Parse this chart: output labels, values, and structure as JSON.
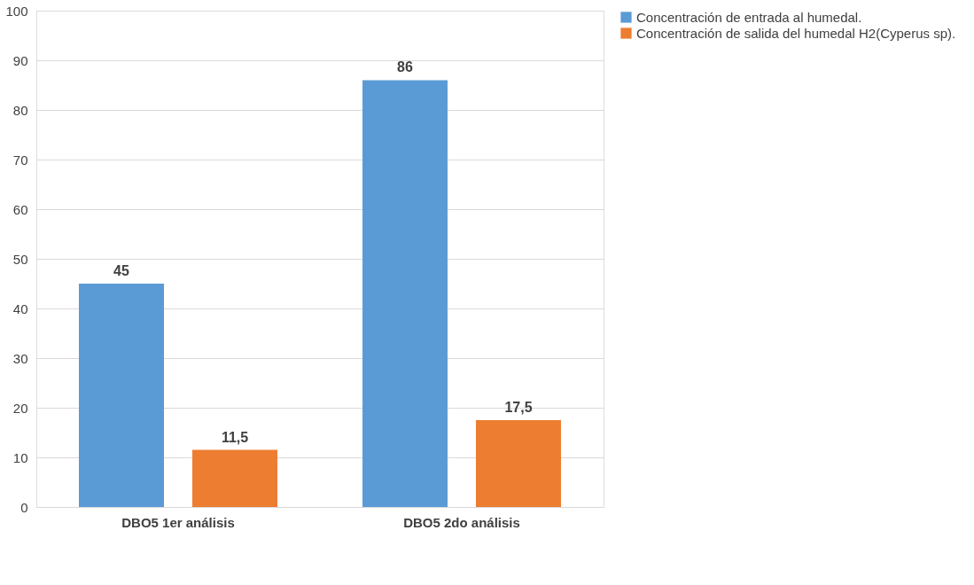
{
  "chart_data": {
    "type": "bar",
    "categories": [
      "DBO5 1er análisis",
      "DBO5 2do análisis"
    ],
    "series": [
      {
        "name": "Concentración de entrada al humedal.",
        "color": "#5b9bd5",
        "values": [
          45,
          86
        ],
        "value_labels": [
          "45",
          "86"
        ]
      },
      {
        "name": "Concentración de salida del humedal H2(Cyperus sp).",
        "color": "#ed7d31",
        "values": [
          11.5,
          17.5
        ],
        "value_labels": [
          "11,5",
          "17,5"
        ]
      }
    ],
    "ylim": [
      0,
      100
    ],
    "yticks": [
      0,
      10,
      20,
      30,
      40,
      50,
      60,
      70,
      80,
      90,
      100
    ],
    "grid": "y",
    "legend": "right"
  }
}
